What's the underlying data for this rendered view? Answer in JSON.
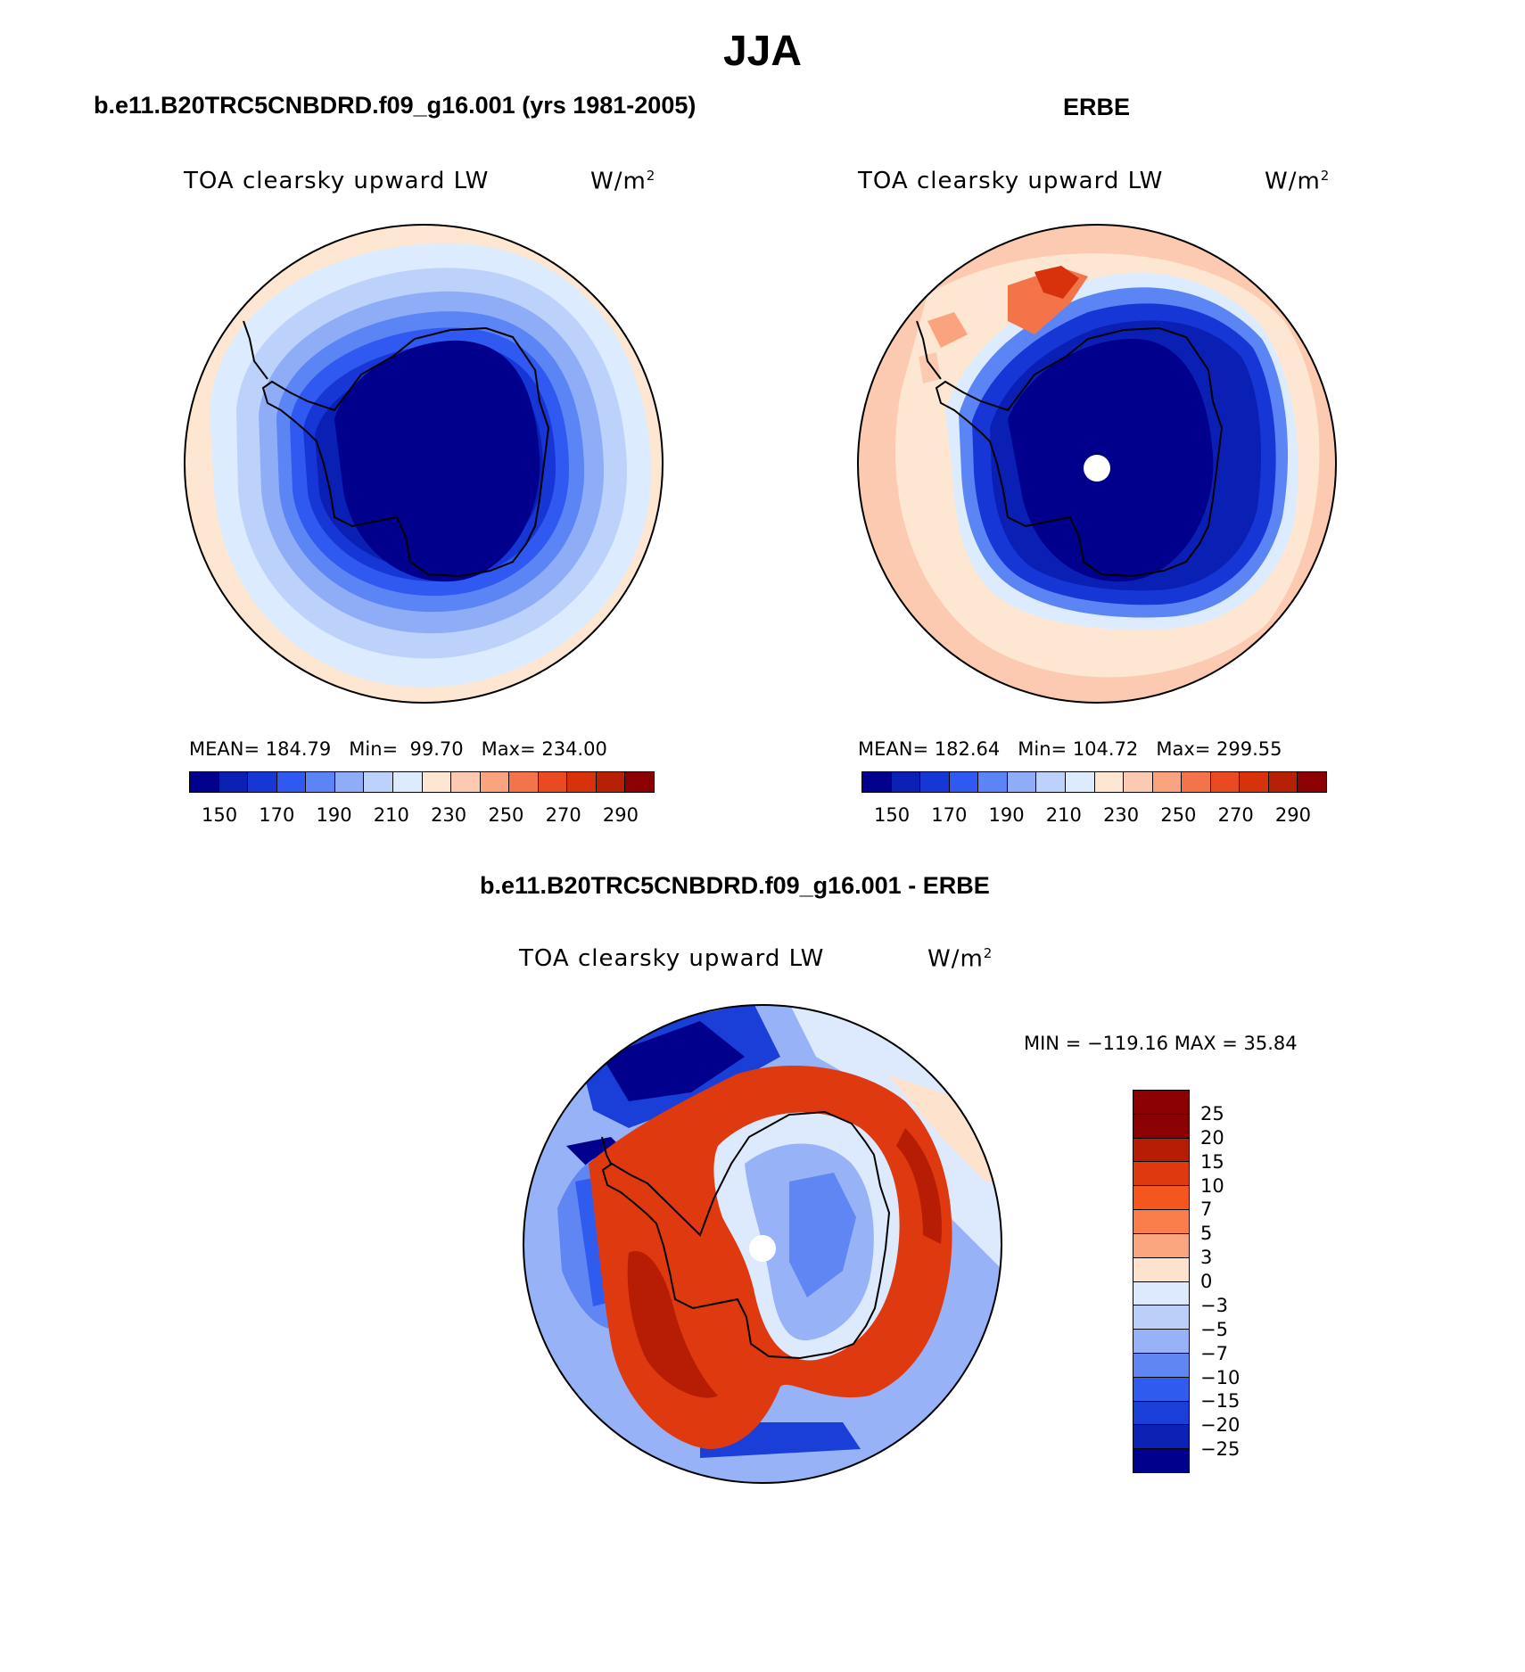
{
  "figure": {
    "season": "JJA"
  },
  "panels": [
    {
      "id": "model",
      "subtitle": "b.e11.B20TRC5CNBDRD.f09_g16.001 (yrs 1981-2005)",
      "variable": "TOA clearsky upward LW",
      "units": "W/m",
      "units_exp": "2",
      "stats": {
        "mean_label": "MEAN=",
        "mean": "184.79",
        "min_label": "Min=",
        "min": "99.70",
        "max_label": "Max=",
        "max": "234.00"
      }
    },
    {
      "id": "obs",
      "subtitle": "ERBE",
      "variable": "TOA clearsky upward LW",
      "units": "W/m",
      "units_exp": "2",
      "stats": {
        "mean_label": "MEAN=",
        "mean": "182.64",
        "min_label": "Min=",
        "min": "104.72",
        "max_label": "Max=",
        "max": "299.55"
      }
    },
    {
      "id": "diff",
      "subtitle": "b.e11.B20TRC5CNBDRD.f09_g16.001 - ERBE",
      "variable": "TOA clearsky upward LW",
      "units": "W/m",
      "units_exp": "2",
      "minmax": "MIN = −119.16 MAX =   35.84"
    }
  ],
  "abs_colorbar": {
    "tick_labels": [
      "150",
      "170",
      "190",
      "210",
      "230",
      "250",
      "270",
      "290"
    ],
    "colors": [
      "#00008c",
      "#0a1fb4",
      "#1636d6",
      "#2f59f0",
      "#5b84f4",
      "#8fadf7",
      "#bcd2fa",
      "#dcebfd",
      "#fde6d2",
      "#fccab0",
      "#f9a37f",
      "#f4744a",
      "#ea4a1f",
      "#d8320c",
      "#b82005",
      "#8b0000"
    ]
  },
  "diff_colorbar": {
    "labels": [
      "25",
      "20",
      "15",
      "10",
      "7",
      "5",
      "3",
      "0",
      "−3",
      "−5",
      "−7",
      "−10",
      "−15",
      "−20",
      "−25"
    ],
    "colors": [
      "#8b0000",
      "#b71c05",
      "#df3a0f",
      "#f5561e",
      "#f97e4c",
      "#fba57e",
      "#fde3cd",
      "#dde9fd",
      "#bccff9",
      "#97b2f6",
      "#5f86f2",
      "#2f5cee",
      "#1a3fd8",
      "#0b22b4",
      "#00008c"
    ]
  }
}
